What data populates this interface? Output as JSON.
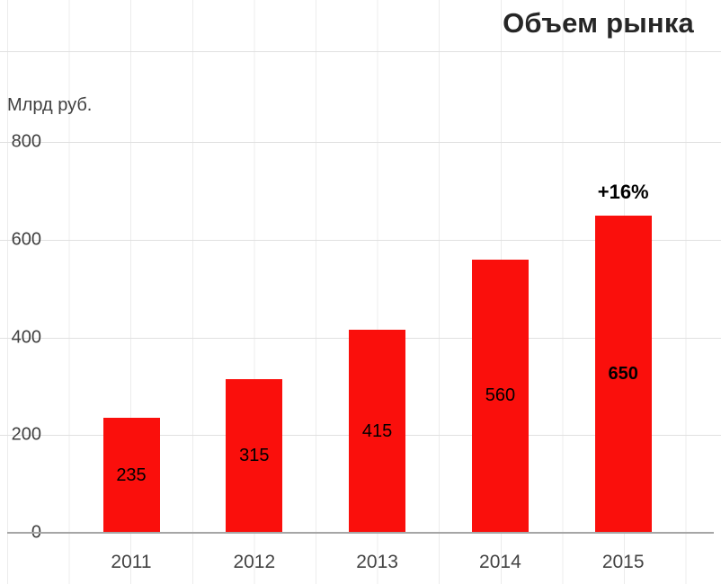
{
  "chart_data": {
    "type": "bar",
    "title": "Объем рынка",
    "ylabel": "Млрд руб.",
    "categories": [
      "2011",
      "2012",
      "2013",
      "2014",
      "2015"
    ],
    "values": [
      235,
      315,
      415,
      560,
      650
    ],
    "value_label_bold": [
      false,
      false,
      false,
      false,
      true
    ],
    "annotation": {
      "category": "2015",
      "label": "+16%"
    },
    "yticks": [
      0,
      200,
      400,
      600,
      800
    ],
    "ylim": [
      0,
      800
    ],
    "grid": true,
    "legend": "none",
    "bar_color": "#fa0f0c"
  },
  "colors": {
    "bar": "#fa0f0c",
    "title_text": "#262626",
    "axis_text": "#404040",
    "axis_line": "#a6a6a6",
    "gridline": "#e0e0e0"
  }
}
